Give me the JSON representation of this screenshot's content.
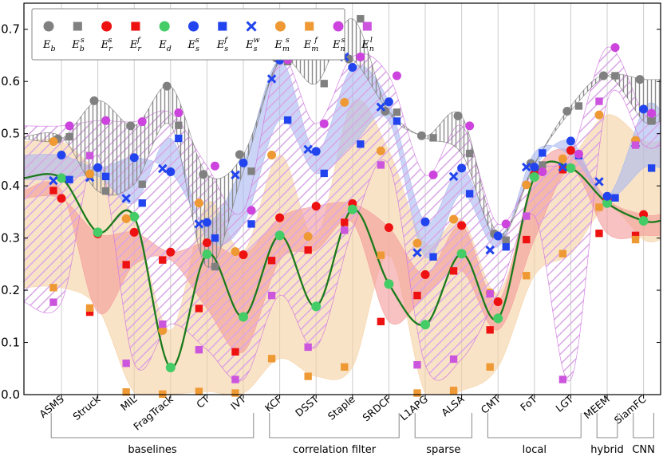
{
  "chart_data": {
    "type": "line",
    "title": "",
    "xlabel": "",
    "ylabel": "",
    "ylim": [
      0.0,
      0.75
    ],
    "yticks": [
      "0.0",
      "0.1",
      "0.2",
      "0.3",
      "0.4",
      "0.5",
      "0.6",
      "0.7"
    ],
    "grid": "vertical",
    "legend_position": "top-left",
    "categories": [
      "ASMS",
      "Struck",
      "MIL",
      "FragTrack",
      "CT",
      "IVT",
      "KCF",
      "DSST",
      "Staple",
      "SRDCF",
      "L1APG",
      "ALSA",
      "CMT",
      "FoT",
      "LGT",
      "MEEM",
      "SiamFC"
    ],
    "groups": [
      {
        "label": "baselines",
        "members": [
          "ASMS",
          "Struck",
          "MIL",
          "FragTrack",
          "CT",
          "IVT"
        ]
      },
      {
        "label": "correlation filter",
        "members": [
          "KCF",
          "DSST",
          "Staple",
          "SRDCF"
        ]
      },
      {
        "label": "sparse",
        "members": [
          "L1APG",
          "ALSA"
        ]
      },
      {
        "label": "local",
        "members": [
          "CMT",
          "FoT",
          "LGT"
        ]
      },
      {
        "label": "hybrid",
        "members": [
          "MEEM"
        ]
      },
      {
        "label": "CNN",
        "members": [
          "SiamFC"
        ]
      }
    ],
    "series": [
      {
        "name": "E_b",
        "legend_base": "E",
        "legend_sub": "b",
        "legend_sup": "",
        "color": "#808080",
        "marker": "circle",
        "offset": 0.4,
        "values": [
          0.49,
          0.563,
          0.515,
          0.591,
          0.422,
          0.46,
          0.645,
          0.662,
          0.643,
          0.543,
          0.496,
          0.534,
          0.308,
          0.443,
          0.543,
          0.611,
          0.604
        ]
      },
      {
        "name": "E_b^s",
        "legend_base": "E",
        "legend_sub": "b",
        "legend_sup": "s",
        "color": "#808080",
        "marker": "square",
        "offset": 0.72,
        "values": [
          0.494,
          0.39,
          0.403,
          0.516,
          0.245,
          0.428,
          0.638,
          0.596,
          0.72,
          0.541,
          0.492,
          0.462,
          0.296,
          0.44,
          0.553,
          0.611,
          0.524
        ]
      },
      {
        "name": "E_r^s",
        "legend_base": "E",
        "legend_sub": "r",
        "legend_sup": "s",
        "color": "#ee1111",
        "marker": "circle",
        "offset": 0.5,
        "values": [
          0.376,
          0.308,
          0.311,
          0.273,
          0.291,
          0.268,
          0.339,
          0.361,
          0.366,
          0.32,
          0.23,
          0.324,
          0.178,
          0.422,
          0.468,
          0.374,
          0.345
        ]
      },
      {
        "name": "E_r^f",
        "legend_base": "E",
        "legend_sub": "r",
        "legend_sup": "f",
        "color": "#ee1111",
        "marker": "square",
        "offset": 0.28,
        "values": [
          0.391,
          0.158,
          0.249,
          0.258,
          0.165,
          0.082,
          0.257,
          0.277,
          0.33,
          0.14,
          0.19,
          0.237,
          0.124,
          0.297,
          0.431,
          0.309,
          0.305
        ]
      },
      {
        "name": "E_d",
        "legend_base": "E",
        "legend_sub": "d",
        "legend_sup": "",
        "color": "#44cc66",
        "marker": "circle",
        "offset": 0.0,
        "values": [
          0.415,
          0.311,
          0.341,
          0.052,
          0.269,
          0.149,
          0.305,
          0.169,
          0.355,
          0.212,
          0.134,
          0.27,
          0.146,
          0.417,
          0.434,
          0.367,
          0.333
        ]
      },
      {
        "name": "E_s^s",
        "legend_base": "E",
        "legend_sub": "s",
        "legend_sup": "s",
        "color": "#2244ee",
        "marker": "circle",
        "offset": 0.5,
        "values": [
          0.459,
          0.435,
          0.454,
          0.427,
          0.33,
          0.444,
          0.641,
          0.466,
          0.627,
          0.561,
          0.331,
          0.434,
          0.304,
          0.436,
          0.486,
          0.38,
          0.547
        ]
      },
      {
        "name": "E_s^f",
        "legend_base": "E",
        "legend_sub": "s",
        "legend_sup": "f",
        "color": "#2244ee",
        "marker": "square",
        "offset": 0.72,
        "values": [
          0.412,
          0.418,
          0.367,
          0.491,
          0.3,
          0.327,
          0.526,
          0.424,
          0.48,
          0.524,
          0.264,
          0.385,
          0.283,
          0.463,
          0.458,
          0.377,
          0.434
        ]
      },
      {
        "name": "E_s^w",
        "legend_base": "E",
        "legend_sub": "s",
        "legend_sup": "w",
        "color": "#2244ee",
        "marker": "x",
        "offset": 0.28,
        "values": [
          0.41,
          0.416,
          0.376,
          0.433,
          0.327,
          0.421,
          0.605,
          0.47,
          0.647,
          0.551,
          0.272,
          0.418,
          0.277,
          0.436,
          0.436,
          0.408,
          0.482
        ]
      },
      {
        "name": "E_m^s",
        "legend_base": "E",
        "legend_sub": "m",
        "legend_sup": "s",
        "color": "#ee9933",
        "marker": "circle",
        "offset": 0.28,
        "values": [
          0.485,
          0.423,
          0.337,
          0.123,
          0.367,
          0.274,
          0.459,
          0.303,
          0.56,
          0.467,
          0.29,
          0.336,
          0.195,
          0.402,
          0.452,
          0.536,
          0.487
        ]
      },
      {
        "name": "E_m^f",
        "legend_base": "E",
        "legend_sub": "m",
        "legend_sup": "f",
        "color": "#ee9933",
        "marker": "square",
        "offset": 0.28,
        "values": [
          0.205,
          0.166,
          0.005,
          0.001,
          0.006,
          0.003,
          0.069,
          0.035,
          0.053,
          0.267,
          0.003,
          0.008,
          0.053,
          0.228,
          0.27,
          0.359,
          0.297
        ]
      },
      {
        "name": "E_n^s",
        "legend_base": "E",
        "legend_sub": "n",
        "legend_sup": "s",
        "color": "#cc44dd",
        "marker": "circle",
        "offset": 0.72,
        "values": [
          0.515,
          0.525,
          0.523,
          0.54,
          0.438,
          0.353,
          0.642,
          0.519,
          0.647,
          0.611,
          0.421,
          0.515,
          0.327,
          0.427,
          0.461,
          0.665,
          0.539
        ]
      },
      {
        "name": "E_n^l",
        "legend_base": "E",
        "legend_sub": "n",
        "legend_sup": "l",
        "color": "#cc55dd",
        "marker": "square",
        "offset": 0.28,
        "values": [
          0.177,
          0.458,
          0.06,
          0.135,
          0.086,
          0.029,
          0.19,
          0.091,
          0.315,
          0.44,
          0.057,
          0.068,
          0.193,
          0.342,
          0.029,
          0.562,
          0.478
        ]
      }
    ],
    "bands": [
      {
        "name": "orange band",
        "lower": "E_m^f",
        "upper": "E_m^s",
        "color": "#f5d0a0",
        "style": "solid"
      },
      {
        "name": "red band",
        "lower": "E_r^f",
        "upper": "E_r^s",
        "color": "#f49a9a",
        "style": "solid"
      },
      {
        "name": "blue band",
        "lower": "E_s^f",
        "upper": "E_s^s",
        "color": "#a8b8f0",
        "style": "solid"
      },
      {
        "name": "purple hatch band",
        "lower": "E_n^l",
        "upper": "E_n^s",
        "color": "#cc66dd",
        "style": "hatch"
      },
      {
        "name": "gray hatch band",
        "lower": "E_b^s",
        "upper": "E_b",
        "color": "#777777",
        "style": "vhatch"
      }
    ],
    "line_series": "E_d",
    "line_color": "#1b7a1b"
  }
}
